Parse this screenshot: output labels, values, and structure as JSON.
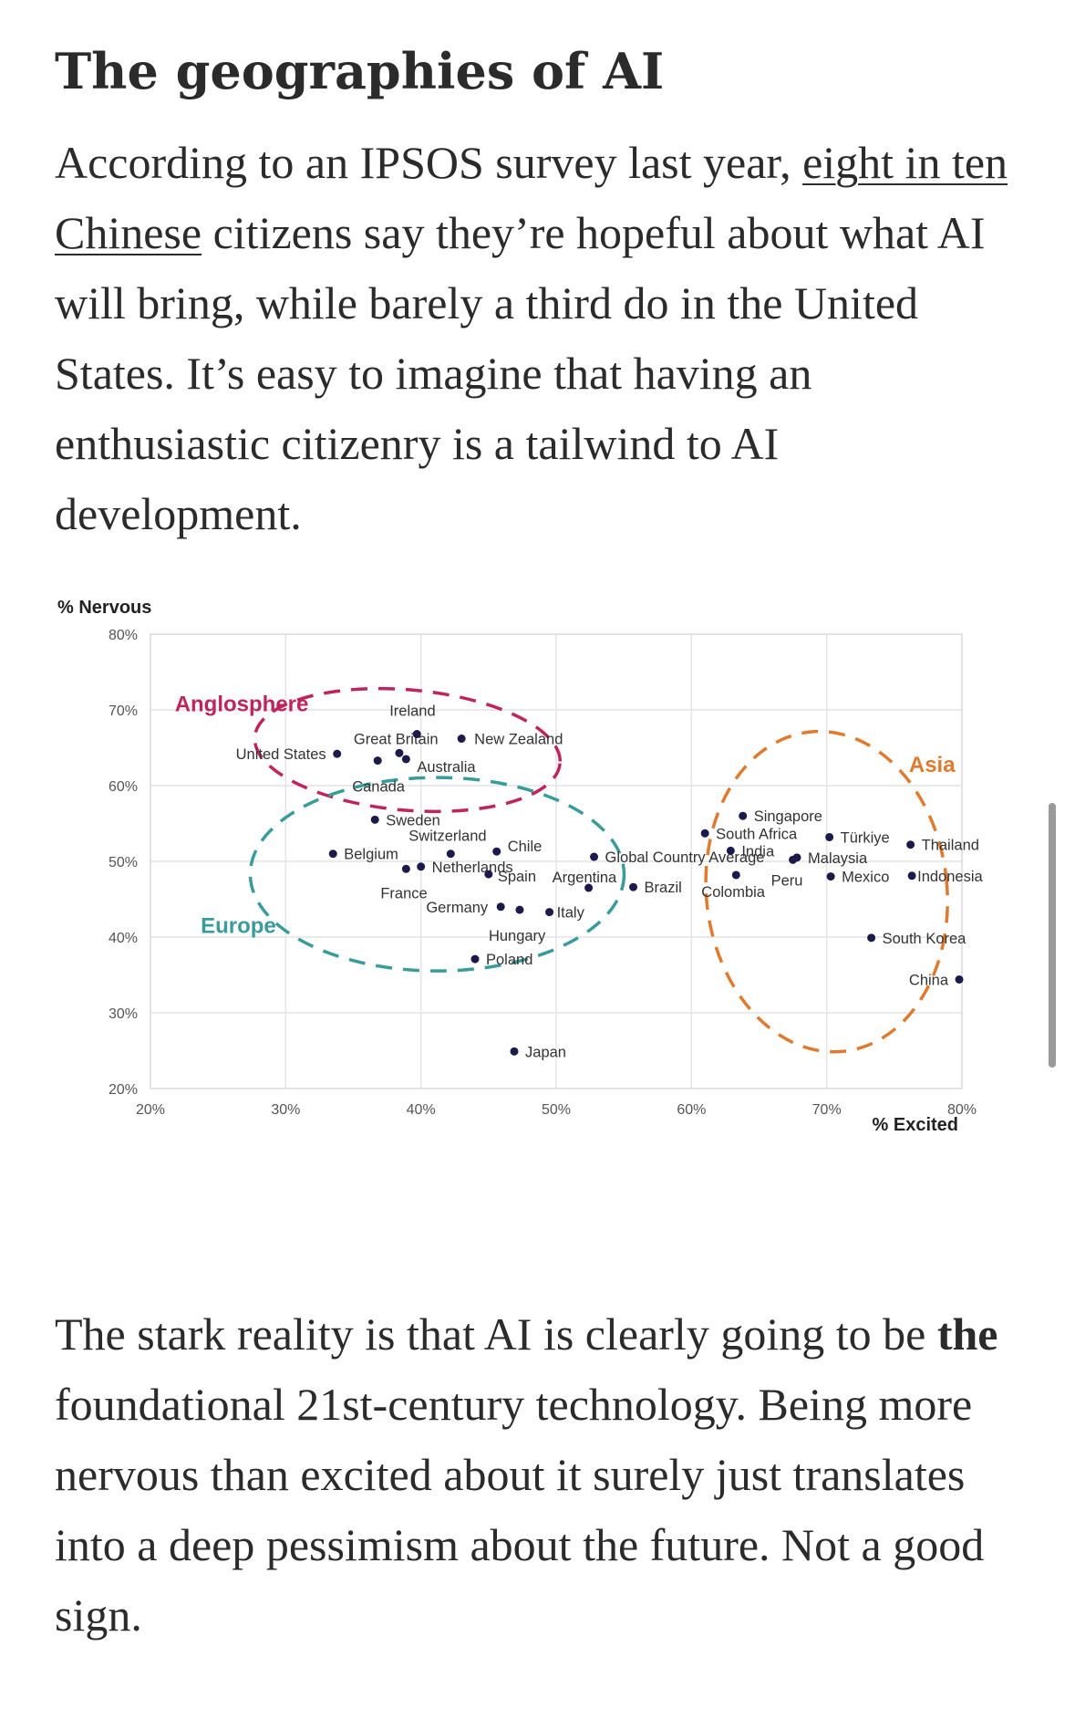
{
  "article": {
    "heading": "The geographies of AI",
    "para1": {
      "pre": "According to an IPSOS survey last year, ",
      "link": "eight in ten Chinese",
      "post": " citizens say they’re hopeful about what AI will bring, while barely a third do in the United States. It’s easy to imagine that having an enthusiastic citizenry is a tailwind to AI development."
    },
    "para2": {
      "pre": "The stark reality is that AI is clearly going to be ",
      "bold": "the",
      "post": " foundational 21st-century technology. Being more nervous than excited about it surely just translates into a deep pessimism about the future. Not a good sign."
    }
  },
  "chart_data": {
    "type": "scatter",
    "xlabel": "% Excited",
    "ylabel": "% Nervous",
    "xlim": [
      20,
      80
    ],
    "ylim": [
      20,
      80
    ],
    "xticks": [
      "20%",
      "30%",
      "40%",
      "50%",
      "60%",
      "70%",
      "80%"
    ],
    "yticks": [
      "20%",
      "30%",
      "40%",
      "50%",
      "60%",
      "70%",
      "80%"
    ],
    "grid": true,
    "point_color": "#1b1b4b",
    "points": [
      {
        "name": "United States",
        "x": 33.8,
        "y": 64.2
      },
      {
        "name": "Canada",
        "x": 36.8,
        "y": 63.3
      },
      {
        "name": "Great Britain",
        "x": 38.4,
        "y": 64.3
      },
      {
        "name": "Ireland",
        "x": 39.7,
        "y": 66.8
      },
      {
        "name": "Australia",
        "x": 38.9,
        "y": 63.5
      },
      {
        "name": "New Zealand",
        "x": 43.0,
        "y": 66.2
      },
      {
        "name": "Sweden",
        "x": 36.6,
        "y": 55.5
      },
      {
        "name": "Belgium",
        "x": 33.5,
        "y": 51.0
      },
      {
        "name": "Switzerland",
        "x": 42.2,
        "y": 51.0
      },
      {
        "name": "Chile",
        "x": 45.6,
        "y": 51.3
      },
      {
        "name": "France",
        "x": 38.9,
        "y": 49.0
      },
      {
        "name": "Netherlands",
        "x": 40.0,
        "y": 49.3
      },
      {
        "name": "Spain",
        "x": 45.0,
        "y": 48.3
      },
      {
        "name": "Germany",
        "x": 45.9,
        "y": 44.0
      },
      {
        "name": "Hungary",
        "x": 47.3,
        "y": 43.6
      },
      {
        "name": "Italy",
        "x": 49.5,
        "y": 43.3
      },
      {
        "name": "Argentina",
        "x": 52.4,
        "y": 46.5
      },
      {
        "name": "Poland",
        "x": 44.0,
        "y": 37.1
      },
      {
        "name": "Japan",
        "x": 46.9,
        "y": 24.9
      },
      {
        "name": "Global Country Average",
        "x": 52.8,
        "y": 50.6
      },
      {
        "name": "Brazil",
        "x": 55.7,
        "y": 46.6
      },
      {
        "name": "Colombia",
        "x": 63.3,
        "y": 48.2
      },
      {
        "name": "Singapore",
        "x": 63.8,
        "y": 56.0
      },
      {
        "name": "South Africa",
        "x": 61.0,
        "y": 53.7
      },
      {
        "name": "India",
        "x": 62.9,
        "y": 51.4
      },
      {
        "name": "Malaysia",
        "x": 67.8,
        "y": 50.5
      },
      {
        "name": "Peru",
        "x": 67.5,
        "y": 50.2
      },
      {
        "name": "Türkiye",
        "x": 70.2,
        "y": 53.2
      },
      {
        "name": "Mexico",
        "x": 70.3,
        "y": 48.0
      },
      {
        "name": "Thailand",
        "x": 76.2,
        "y": 52.2
      },
      {
        "name": "Indonesia",
        "x": 76.3,
        "y": 48.1
      },
      {
        "name": "South Korea",
        "x": 73.3,
        "y": 39.9
      },
      {
        "name": "China",
        "x": 79.8,
        "y": 34.4
      }
    ],
    "clusters": [
      {
        "name": "Anglosphere",
        "color": "#c0245c"
      },
      {
        "name": "Europe",
        "color": "#3a9b9b"
      },
      {
        "name": "Asia",
        "color": "#e07a2e"
      }
    ]
  }
}
